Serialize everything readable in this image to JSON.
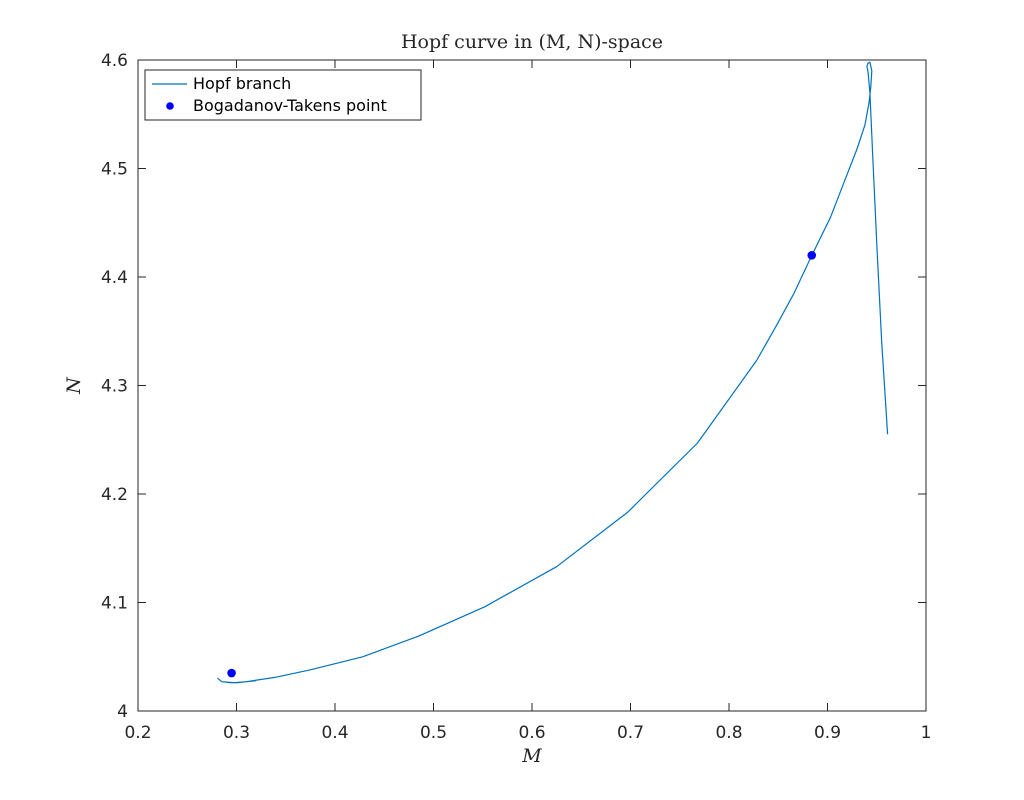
{
  "chart_data": {
    "type": "line",
    "title": "Hopf curve in (M, N)-space",
    "xlabel": "M",
    "ylabel": "N",
    "xlim": [
      0.2,
      1.0
    ],
    "ylim": [
      4.0,
      4.6
    ],
    "xticks": [
      0.2,
      0.3,
      0.4,
      0.5,
      0.6,
      0.7,
      0.8,
      0.9,
      1.0
    ],
    "yticks": [
      4.0,
      4.1,
      4.2,
      4.3,
      4.4,
      4.5,
      4.6
    ],
    "xtick_labels": [
      "0.2",
      "0.3",
      "0.4",
      "0.5",
      "0.6",
      "0.7",
      "0.8",
      "0.9",
      "1"
    ],
    "ytick_labels": [
      "4",
      "4.1",
      "4.2",
      "4.3",
      "4.4",
      "4.5",
      "4.6"
    ],
    "grid": false,
    "legend_position": "top-left",
    "series": [
      {
        "name": "Hopf branch",
        "style": "line",
        "color": "#0072BD",
        "x": [
          0.961,
          0.955,
          0.95,
          0.946,
          0.943,
          0.941,
          0.94,
          0.941,
          0.943,
          0.945,
          0.944,
          0.942,
          0.938,
          0.93,
          0.918,
          0.903,
          0.883,
          0.866,
          0.848,
          0.828,
          0.768,
          0.697,
          0.625,
          0.552,
          0.485,
          0.428,
          0.375,
          0.339,
          0.31,
          0.295,
          0.285,
          0.281,
          0.285,
          0.3,
          0.32
        ],
        "y": [
          4.255,
          4.34,
          4.43,
          4.51,
          4.57,
          4.59,
          4.594,
          4.597,
          4.598,
          4.59,
          4.575,
          4.56,
          4.54,
          4.518,
          4.49,
          4.455,
          4.418,
          4.385,
          4.355,
          4.323,
          4.247,
          4.183,
          4.133,
          4.096,
          4.069,
          4.05,
          4.038,
          4.031,
          4.027,
          4.026,
          4.027,
          4.03,
          4.027,
          4.026,
          4.028
        ]
      },
      {
        "name": "Bogadanov-Takens point",
        "style": "marker",
        "color": "#0000FF",
        "x": [
          0.295,
          0.884
        ],
        "y": [
          4.035,
          4.42
        ]
      }
    ]
  }
}
